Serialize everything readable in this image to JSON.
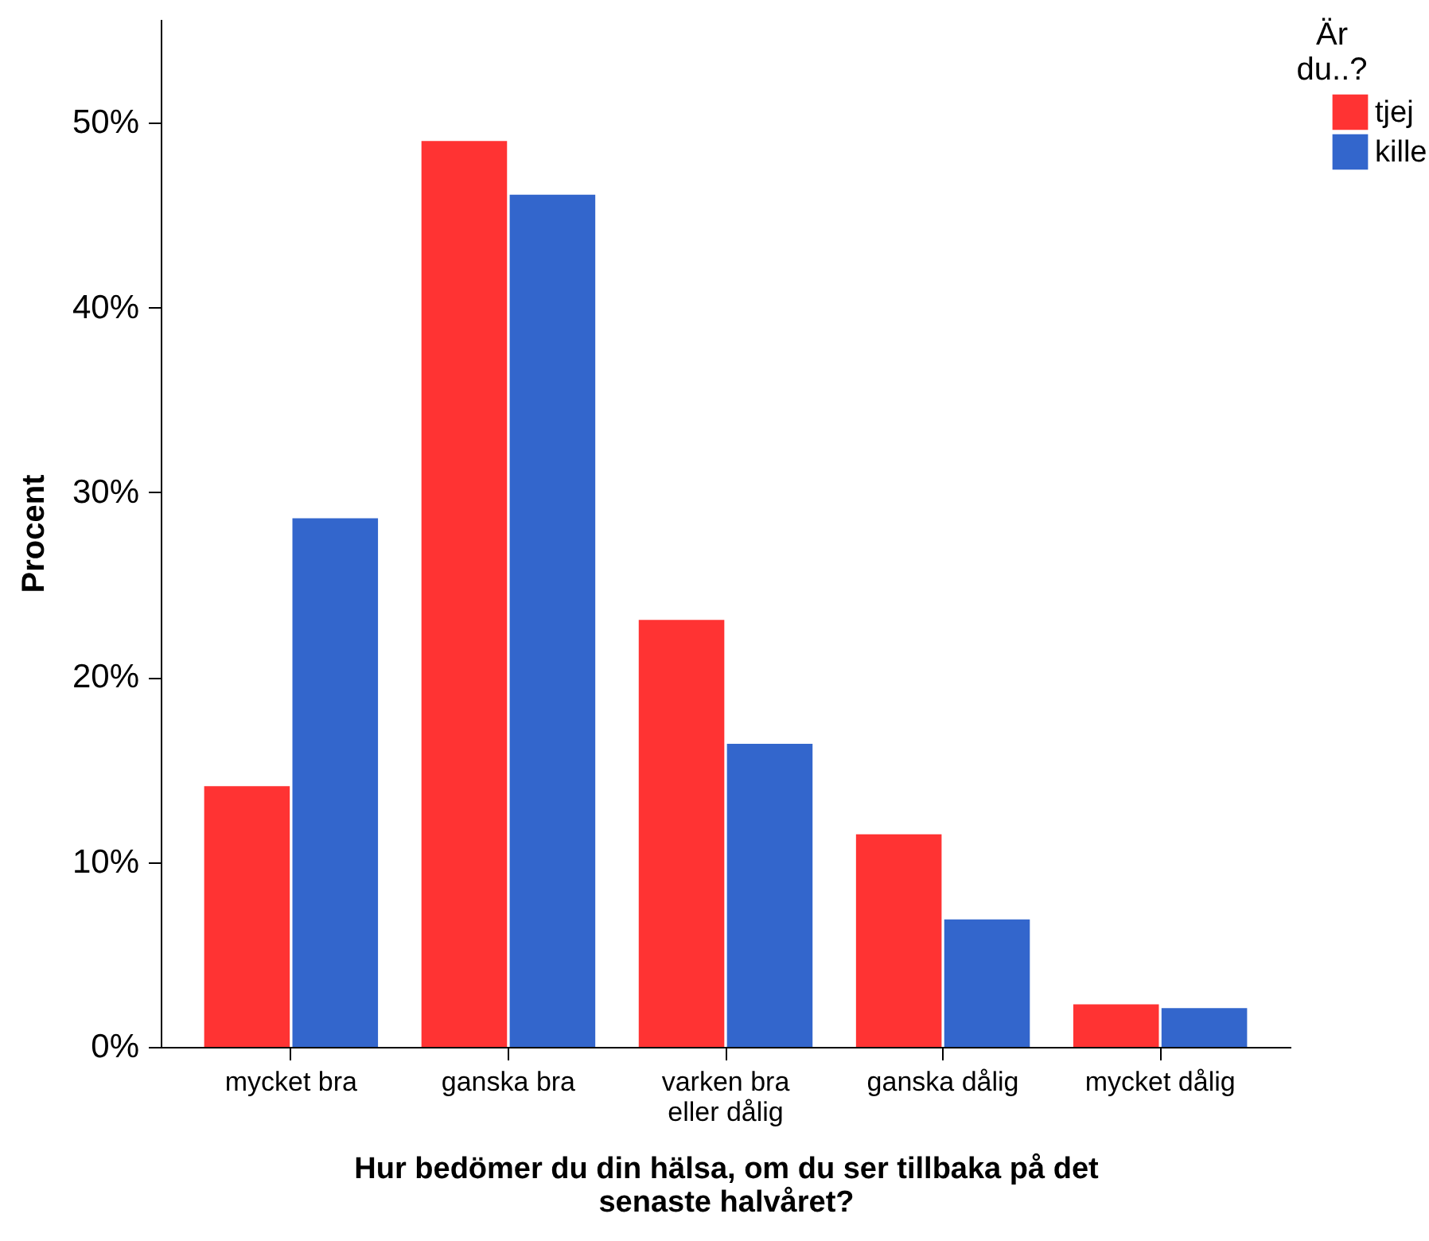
{
  "chart_data": {
    "type": "bar",
    "xlabel": "Hur bedömer du din hälsa, om du ser tillbaka på det senaste halvåret?",
    "ylabel": "Procent",
    "legend_title": "Är du..?",
    "categories": [
      "mycket bra",
      "ganska bra",
      "varken bra eller dålig",
      "ganska dålig",
      "mycket dålig"
    ],
    "series": [
      {
        "name": "tjej",
        "color": "#ff3333",
        "values": [
          14.1,
          49.0,
          23.1,
          11.5,
          2.3
        ]
      },
      {
        "name": "kille",
        "color": "#3366cc",
        "values": [
          28.6,
          46.1,
          16.4,
          6.9,
          2.1
        ]
      }
    ],
    "ylim": [
      0,
      55.6
    ],
    "yticks": [
      {
        "value": 0,
        "label": "0%"
      },
      {
        "value": 10,
        "label": "10%"
      },
      {
        "value": 20,
        "label": "20%"
      },
      {
        "value": 30,
        "label": "30%"
      },
      {
        "value": 40,
        "label": "40%"
      },
      {
        "value": 50,
        "label": "50%"
      }
    ],
    "grid": false,
    "legend": "top right"
  }
}
